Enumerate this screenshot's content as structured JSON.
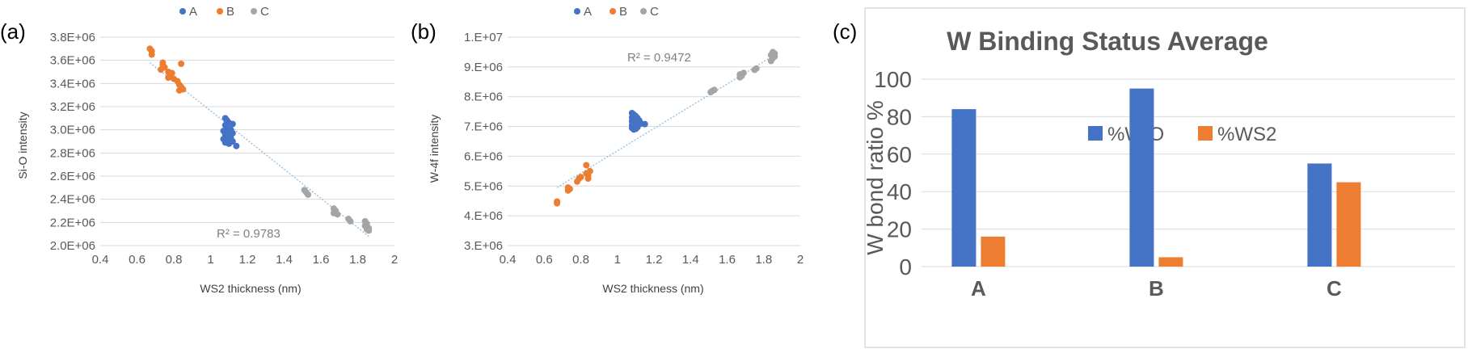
{
  "colors": {
    "A": "#4472C4",
    "B": "#ED7D31",
    "C": "#A5A5A5",
    "grid": "#D9D9D9",
    "trend": "#9DC3E6"
  },
  "chart_data": [
    {
      "panel_label": "(a)",
      "type": "scatter",
      "title": "",
      "xlabel": "WS2 thickness (nm)",
      "ylabel": "Si-O intensity",
      "xlim": [
        0.4,
        2
      ],
      "ylim": [
        2000000,
        3800000
      ],
      "xticks": [
        0.4,
        0.6,
        0.8,
        1,
        1.2,
        1.4,
        1.6,
        1.8,
        2
      ],
      "xtick_labels": [
        "0.4",
        "0.6",
        "0.8",
        "1",
        "1.2",
        "1.4",
        "1.6",
        "1.8",
        "2"
      ],
      "yticks": [
        2000000,
        2200000,
        2400000,
        2600000,
        2800000,
        3000000,
        3200000,
        3400000,
        3600000,
        3800000
      ],
      "ytick_labels": [
        "2.0E+06",
        "2.2E+06",
        "2.4E+06",
        "2.6E+06",
        "2.8E+06",
        "3.0E+06",
        "3.2E+06",
        "3.4E+06",
        "3.6E+06",
        "3.8E+06"
      ],
      "grid": "horizontal",
      "legend": {
        "position": "top",
        "entries": [
          "A",
          "B",
          "C"
        ]
      },
      "annotation": "R² = 0.9783",
      "trendline": [
        [
          0.67,
          3580000
        ],
        [
          1.86,
          2080000
        ]
      ],
      "series": [
        {
          "name": "A",
          "color": "#4472C4",
          "points": [
            [
              1.08,
              3100000
            ],
            [
              1.09,
              3080000
            ],
            [
              1.1,
              3060000
            ],
            [
              1.08,
              3040000
            ],
            [
              1.12,
              3050000
            ],
            [
              1.09,
              3020000
            ],
            [
              1.11,
              3000000
            ],
            [
              1.07,
              2990000
            ],
            [
              1.1,
              2980000
            ],
            [
              1.12,
              2970000
            ],
            [
              1.08,
              2960000
            ],
            [
              1.1,
              2950000
            ],
            [
              1.09,
              2940000
            ],
            [
              1.11,
              2930000
            ],
            [
              1.07,
              2920000
            ],
            [
              1.1,
              2910000
            ],
            [
              1.12,
              2900000
            ],
            [
              1.08,
              2890000
            ],
            [
              1.1,
              2880000
            ],
            [
              1.14,
              2860000
            ]
          ]
        },
        {
          "name": "B",
          "color": "#ED7D31",
          "points": [
            [
              0.67,
              3700000
            ],
            [
              0.68,
              3680000
            ],
            [
              0.68,
              3650000
            ],
            [
              0.74,
              3580000
            ],
            [
              0.74,
              3560000
            ],
            [
              0.75,
              3540000
            ],
            [
              0.73,
              3520000
            ],
            [
              0.77,
              3500000
            ],
            [
              0.79,
              3490000
            ],
            [
              0.78,
              3470000
            ],
            [
              0.77,
              3450000
            ],
            [
              0.8,
              3440000
            ],
            [
              0.82,
              3420000
            ],
            [
              0.83,
              3390000
            ],
            [
              0.84,
              3370000
            ],
            [
              0.85,
              3350000
            ],
            [
              0.83,
              3340000
            ],
            [
              0.84,
              3570000
            ]
          ]
        },
        {
          "name": "C",
          "color": "#A5A5A5",
          "points": [
            [
              1.51,
              2480000
            ],
            [
              1.52,
              2460000
            ],
            [
              1.53,
              2440000
            ],
            [
              1.67,
              2320000
            ],
            [
              1.68,
              2300000
            ],
            [
              1.67,
              2280000
            ],
            [
              1.69,
              2270000
            ],
            [
              1.75,
              2230000
            ],
            [
              1.76,
              2210000
            ],
            [
              1.84,
              2210000
            ],
            [
              1.85,
              2190000
            ],
            [
              1.84,
              2170000
            ],
            [
              1.86,
              2150000
            ],
            [
              1.85,
              2140000
            ],
            [
              1.86,
              2130000
            ]
          ]
        }
      ]
    },
    {
      "panel_label": "(b)",
      "type": "scatter",
      "title": "",
      "xlabel": "WS2 thickness (nm)",
      "ylabel": "W-4f intensity",
      "xlim": [
        0.4,
        2
      ],
      "ylim": [
        3000000,
        10000000
      ],
      "xticks": [
        0.4,
        0.6,
        0.8,
        1,
        1.2,
        1.4,
        1.6,
        1.8,
        2
      ],
      "xtick_labels": [
        "0.4",
        "0.6",
        "0.8",
        "1",
        "1.2",
        "1.4",
        "1.6",
        "1.8",
        "2"
      ],
      "yticks": [
        3000000,
        4000000,
        5000000,
        6000000,
        7000000,
        8000000,
        9000000,
        10000000
      ],
      "ytick_labels": [
        "3.E+06",
        "4.E+06",
        "5.E+06",
        "6.E+06",
        "7.E+06",
        "8.E+06",
        "9.E+06",
        "1.E+07"
      ],
      "grid": "horizontal",
      "legend": {
        "position": "top",
        "entries": [
          "A",
          "B",
          "C"
        ]
      },
      "annotation": "R² = 0.9472",
      "trendline": [
        [
          0.67,
          4950000
        ],
        [
          1.86,
          9400000
        ]
      ],
      "series": [
        {
          "name": "A",
          "color": "#4472C4",
          "points": [
            [
              1.08,
              7450000
            ],
            [
              1.09,
              7400000
            ],
            [
              1.1,
              7350000
            ],
            [
              1.08,
              7300000
            ],
            [
              1.11,
              7280000
            ],
            [
              1.09,
              7250000
            ],
            [
              1.1,
              7220000
            ],
            [
              1.12,
              7200000
            ],
            [
              1.08,
              7180000
            ],
            [
              1.1,
              7150000
            ],
            [
              1.11,
              7120000
            ],
            [
              1.09,
              7100000
            ],
            [
              1.13,
              7100000
            ],
            [
              1.15,
              7080000
            ],
            [
              1.08,
              7050000
            ],
            [
              1.1,
              7020000
            ],
            [
              1.09,
              7000000
            ],
            [
              1.11,
              6980000
            ],
            [
              1.08,
              6950000
            ],
            [
              1.1,
              6920000
            ],
            [
              1.09,
              6900000
            ]
          ]
        },
        {
          "name": "B",
          "color": "#ED7D31",
          "points": [
            [
              0.67,
              4480000
            ],
            [
              0.67,
              4420000
            ],
            [
              0.73,
              4850000
            ],
            [
              0.74,
              4900000
            ],
            [
              0.73,
              4950000
            ],
            [
              0.78,
              5150000
            ],
            [
              0.79,
              5250000
            ],
            [
              0.8,
              5300000
            ],
            [
              0.83,
              5420000
            ],
            [
              0.85,
              5500000
            ],
            [
              0.84,
              5350000
            ],
            [
              0.83,
              5700000
            ],
            [
              0.84,
              5250000
            ]
          ]
        },
        {
          "name": "C",
          "color": "#A5A5A5",
          "points": [
            [
              1.51,
              8150000
            ],
            [
              1.52,
              8200000
            ],
            [
              1.53,
              8230000
            ],
            [
              1.67,
              8650000
            ],
            [
              1.68,
              8700000
            ],
            [
              1.67,
              8750000
            ],
            [
              1.69,
              8800000
            ],
            [
              1.75,
              8900000
            ],
            [
              1.76,
              8950000
            ],
            [
              1.84,
              9200000
            ],
            [
              1.85,
              9300000
            ],
            [
              1.84,
              9400000
            ],
            [
              1.86,
              9450000
            ],
            [
              1.85,
              9500000
            ],
            [
              1.86,
              9350000
            ]
          ]
        }
      ]
    },
    {
      "panel_label": "(c)",
      "type": "bar",
      "title": "W Binding Status Average",
      "xlabel": "",
      "ylabel": "W bond ratio %",
      "categories": [
        "A",
        "B",
        "C"
      ],
      "ylim": [
        0,
        100
      ],
      "yticks": [
        0,
        20,
        40,
        60,
        80,
        100
      ],
      "ytick_labels": [
        "0",
        "20",
        "40",
        "60",
        "80",
        "100"
      ],
      "grid": "horizontal",
      "legend": {
        "position": "top-right",
        "entries": [
          "%W-O",
          "%WS2"
        ]
      },
      "series": [
        {
          "name": "%W-O",
          "color": "#4472C4",
          "values": [
            84,
            95,
            55
          ]
        },
        {
          "name": "%WS2",
          "color": "#ED7D31",
          "values": [
            16,
            5,
            45
          ]
        }
      ]
    }
  ]
}
